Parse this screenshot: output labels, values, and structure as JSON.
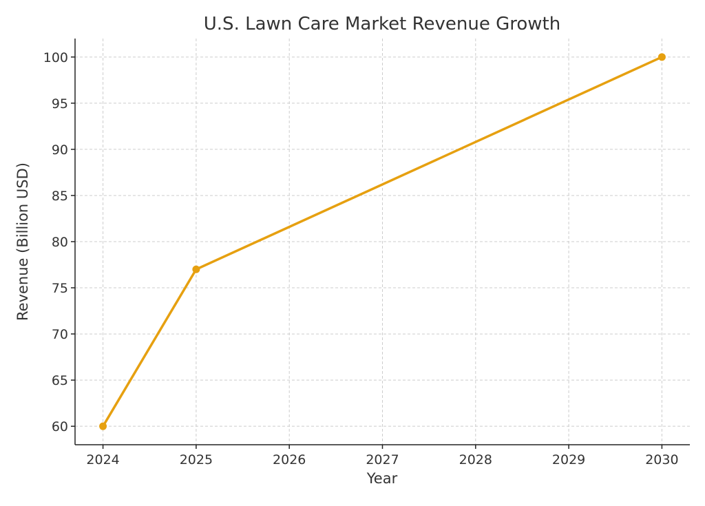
{
  "chart_data": {
    "type": "line",
    "title": "U.S. Lawn Care Market Revenue Growth",
    "xlabel": "Year",
    "ylabel": "Revenue (Billion USD)",
    "x_ticks": [
      "2024",
      "2025",
      "2026",
      "2027",
      "2028",
      "2029",
      "2030"
    ],
    "y_ticks": [
      "60",
      "65",
      "70",
      "75",
      "80",
      "85",
      "90",
      "95",
      "100"
    ],
    "xlim": [
      2023.7,
      2030.3
    ],
    "ylim": [
      58.0,
      102.0
    ],
    "grid": true,
    "series": [
      {
        "color": "#E6A010",
        "x": [
          2024,
          2025,
          2030
        ],
        "y": [
          60,
          77,
          100
        ]
      }
    ]
  }
}
